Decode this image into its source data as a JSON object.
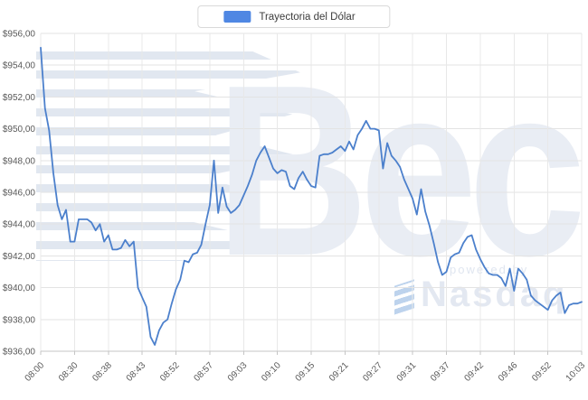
{
  "watermark": {
    "brand": "Bec",
    "powered_by": "powered by",
    "provider": "Nasdaq"
  },
  "chart_data": {
    "type": "line",
    "title": "Trayectoria del Dólar",
    "legend": "Trayectoria del Dólar",
    "legend_position": "top-center",
    "grid": true,
    "line_color": "#4c80cc",
    "legend_swatch_color": "#4f87e3",
    "ylabel": "",
    "xlabel": "",
    "ylim": [
      936,
      956
    ],
    "y_tick_step": 2,
    "y_tick_labels": [
      "$956,00",
      "$954,00",
      "$952,00",
      "$950,00",
      "$948,00",
      "$946,00",
      "$944,00",
      "$942,00",
      "$940,00",
      "$938,00",
      "$936,00"
    ],
    "x_labels": [
      "08:00",
      "08:30",
      "08:38",
      "08:43",
      "08:52",
      "08:57",
      "09:03",
      "09:10",
      "09:15",
      "09:21",
      "09:27",
      "09:31",
      "09:37",
      "09:42",
      "09:46",
      "09:52",
      "10:03"
    ],
    "label_every": 8,
    "values": [
      955.1,
      951.3,
      949.9,
      947.2,
      945.2,
      944.3,
      944.9,
      942.9,
      942.9,
      944.3,
      944.3,
      944.3,
      944.1,
      943.6,
      944.0,
      942.9,
      943.3,
      942.4,
      942.4,
      942.5,
      943.0,
      942.6,
      942.9,
      940.0,
      939.4,
      938.8,
      936.9,
      936.4,
      937.3,
      937.8,
      938.0,
      939.0,
      939.9,
      940.5,
      941.7,
      941.6,
      942.1,
      942.2,
      942.7,
      944.0,
      945.2,
      948.0,
      944.7,
      946.3,
      945.1,
      944.7,
      944.9,
      945.2,
      945.8,
      946.4,
      947.1,
      948.0,
      948.5,
      948.9,
      948.2,
      947.5,
      947.2,
      947.4,
      947.3,
      946.4,
      946.2,
      946.9,
      947.3,
      946.8,
      946.4,
      946.3,
      948.3,
      948.4,
      948.4,
      948.5,
      948.7,
      948.9,
      948.6,
      949.2,
      948.7,
      949.6,
      950.0,
      950.5,
      950.0,
      950.0,
      949.9,
      947.5,
      949.1,
      948.3,
      948.0,
      947.6,
      946.8,
      946.2,
      945.6,
      944.6,
      946.2,
      944.8,
      943.9,
      942.8,
      941.6,
      940.8,
      941.0,
      941.9,
      942.1,
      942.2,
      942.8,
      943.2,
      943.3,
      942.4,
      941.8,
      941.3,
      940.9,
      940.8,
      940.8,
      940.6,
      940.1,
      941.2,
      939.8,
      941.2,
      940.9,
      940.5,
      939.5,
      939.2,
      939.0,
      938.8,
      938.6,
      939.2,
      939.5,
      939.7,
      938.4,
      938.9,
      939.0,
      939.0,
      939.1
    ]
  }
}
